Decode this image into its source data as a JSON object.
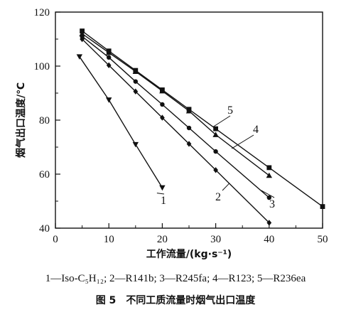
{
  "chart_data": {
    "type": "line",
    "title": "",
    "xlabel": "工作流量/(kg·s⁻¹)",
    "ylabel": "烟气出口温度/℃",
    "xlim": [
      0,
      50
    ],
    "ylim": [
      40,
      120
    ],
    "x_ticks": [
      "0",
      "10",
      "20",
      "30",
      "40",
      "50"
    ],
    "y_ticks": [
      "40",
      "60",
      "80",
      "100",
      "120"
    ],
    "grid": false,
    "series": [
      {
        "name": "1",
        "marker": "triangle-down",
        "points": [
          [
            4.5,
            103.5
          ],
          [
            10,
            87.5
          ],
          [
            15,
            71
          ],
          [
            20,
            55
          ]
        ]
      },
      {
        "name": "2",
        "marker": "diamond",
        "points": [
          [
            5,
            110
          ],
          [
            10,
            100.3
          ],
          [
            15,
            90.6
          ],
          [
            20,
            80.9
          ],
          [
            25,
            71.2
          ],
          [
            30,
            61.5
          ],
          [
            40,
            42
          ]
        ]
      },
      {
        "name": "3",
        "marker": "circle",
        "points": [
          [
            5,
            111
          ],
          [
            10,
            103.2
          ],
          [
            15,
            94.3
          ],
          [
            20,
            85.8
          ],
          [
            25,
            77.1
          ],
          [
            30,
            68.4
          ],
          [
            40,
            51.3
          ]
        ]
      },
      {
        "name": "4",
        "marker": "triangle-up",
        "points": [
          [
            5,
            112
          ],
          [
            10,
            105
          ],
          [
            15,
            98
          ],
          [
            20,
            90.8
          ],
          [
            25,
            83.4
          ],
          [
            30,
            74.6
          ],
          [
            40,
            59.5
          ]
        ]
      },
      {
        "name": "5",
        "marker": "square",
        "points": [
          [
            5,
            113
          ],
          [
            10,
            105.6
          ],
          [
            15,
            98.4
          ],
          [
            20,
            91.2
          ],
          [
            25,
            84
          ],
          [
            30,
            76.8
          ],
          [
            40,
            62.4
          ],
          [
            50,
            48
          ]
        ]
      }
    ]
  },
  "legend_text": "1—Iso-C₅H₁₂; 2—R141b; 3—R245fa; 4—R123; 5—R236ea",
  "caption": {
    "number": "图 5",
    "text": "不同工质流量时烟气出口温度"
  }
}
